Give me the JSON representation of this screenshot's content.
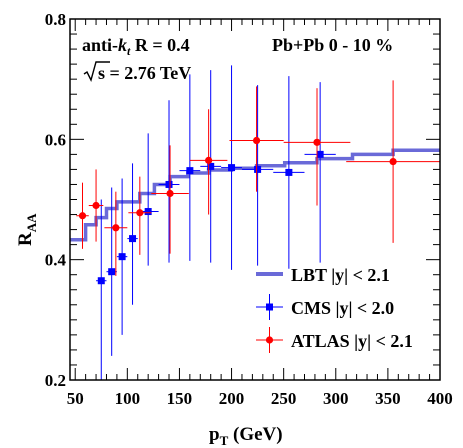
{
  "chart_data": {
    "type": "scatter",
    "xlabel": {
      "main": "p",
      "sub": "T",
      "rest": " (GeV)"
    },
    "ylabel": {
      "main": "R",
      "sub": "AA"
    },
    "xlim": [
      45,
      400
    ],
    "ylim": [
      0.2,
      0.8
    ],
    "xticks": [
      50,
      100,
      150,
      200,
      250,
      300,
      350,
      400
    ],
    "yticks": [
      0.2,
      0.4,
      0.6,
      0.8
    ],
    "yticklabels": [
      "0.2",
      "0.4",
      "0.6",
      "0.8"
    ],
    "annotations": {
      "algo_prefix": "anti-",
      "algo_k": "k",
      "algo_sub": "t",
      "algo_rest": " R = 0.4",
      "energy": "s = 2.76 TeV",
      "system": "Pb+Pb 0 - 10 %"
    },
    "legend": {
      "position": "bottom-right",
      "entries": [
        "LBT |y| < 2.1",
        "CMS |y| < 2.0",
        "ATLAS |y| < 2.1"
      ]
    },
    "colors": {
      "lbt": "#6a6ad8",
      "cms": "#0000ff",
      "atlas": "#ff0000"
    },
    "series": [
      {
        "name": "LBT |y| < 2.1",
        "style": "step",
        "edges": [
          45,
          60,
          70,
          80,
          90,
          100,
          112,
          126,
          141,
          158,
          178,
          200,
          224,
          251,
          282,
          316,
          355,
          400
        ],
        "values": [
          0.433,
          0.458,
          0.47,
          0.485,
          0.496,
          0.496,
          0.51,
          0.525,
          0.538,
          0.544,
          0.549,
          0.552,
          0.556,
          0.561,
          0.568,
          0.575,
          0.582
        ]
      },
      {
        "name": "CMS |y| < 2.0",
        "style": "points",
        "marker": "square",
        "x": [
          75,
          85,
          95,
          105,
          120,
          140,
          160,
          180,
          200,
          225,
          255,
          285
        ],
        "xerr": [
          5,
          5,
          5,
          5,
          10,
          10,
          10,
          10,
          10,
          15,
          15,
          15
        ],
        "y": [
          0.365,
          0.38,
          0.405,
          0.435,
          0.48,
          0.525,
          0.548,
          0.555,
          0.553,
          0.55,
          0.545,
          0.575
        ],
        "yerr_low": [
          0.165,
          0.14,
          0.13,
          0.11,
          0.09,
          0.13,
          0.15,
          0.16,
          0.17,
          0.16,
          0.16,
          0.18
        ],
        "yerr_high": [
          0.135,
          0.14,
          0.13,
          0.125,
          0.13,
          0.14,
          0.16,
          0.16,
          0.17,
          0.14,
          0.16,
          0.12
        ]
      },
      {
        "name": "ATLAS |y| < 2.1",
        "style": "points",
        "marker": "circle",
        "x": [
          57,
          70,
          89,
          112,
          141,
          178,
          224,
          282,
          355
        ],
        "xerr": [
          6,
          7,
          11,
          11,
          18,
          18,
          26,
          32,
          45
        ],
        "y": [
          0.473,
          0.49,
          0.453,
          0.478,
          0.51,
          0.565,
          0.598,
          0.595,
          0.563
        ],
        "yerr_low": [
          0.055,
          0.06,
          0.08,
          0.07,
          0.1,
          0.09,
          0.085,
          0.105,
          0.135
        ],
        "yerr_high": [
          0.055,
          0.06,
          0.06,
          0.06,
          0.08,
          0.085,
          0.09,
          0.09,
          0.135
        ]
      }
    ]
  }
}
